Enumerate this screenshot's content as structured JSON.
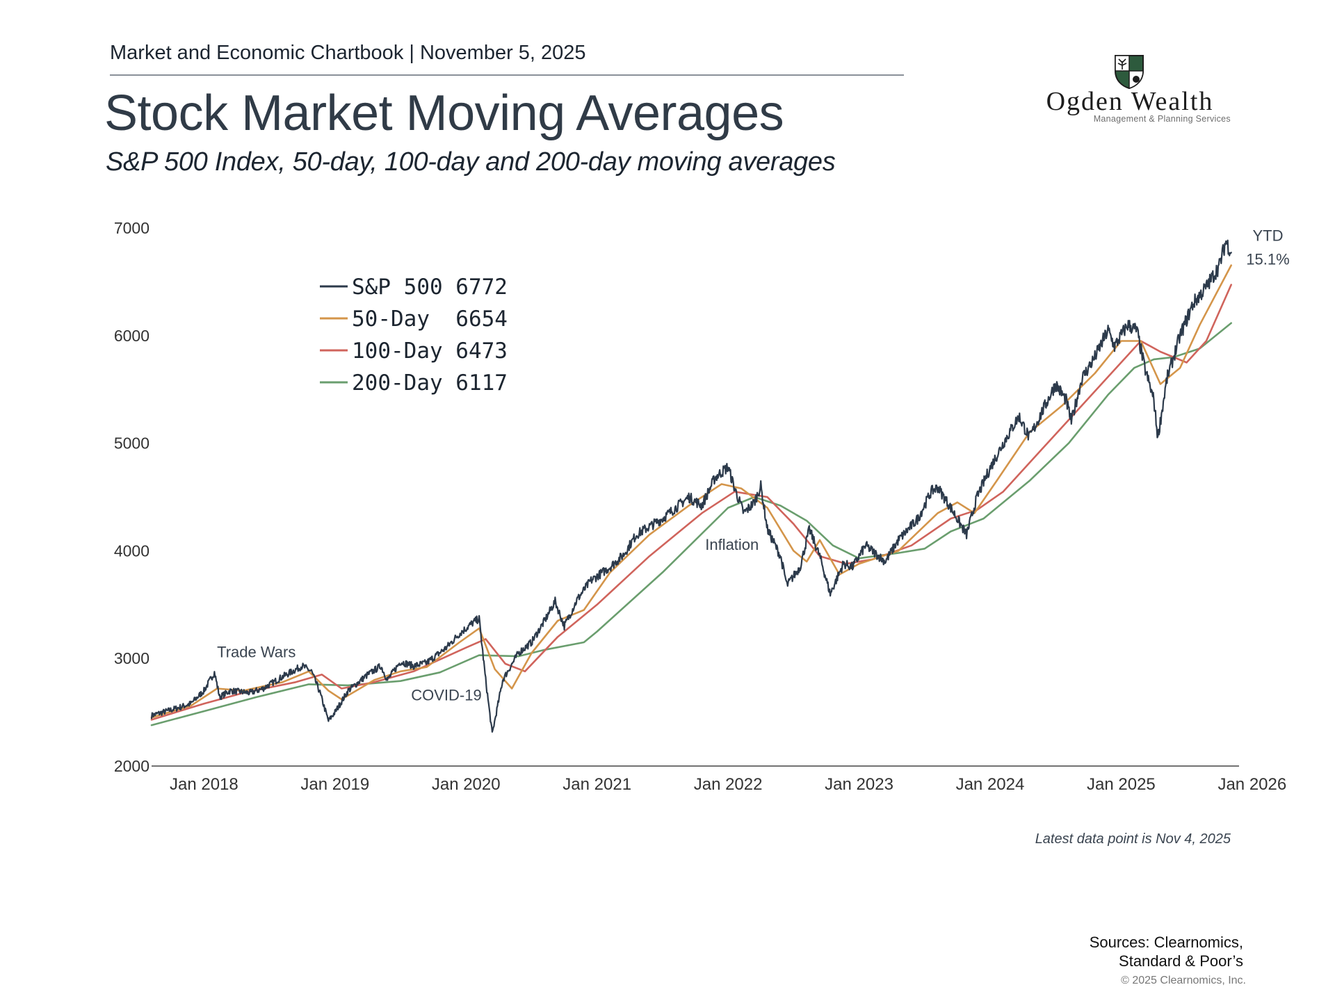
{
  "header": {
    "chartbook": "Market and Economic Chartbook | November 5, 2025",
    "title": "Stock Market Moving Averages",
    "subtitle": "S&P 500 Index, 50-day, 100-day and 200-day moving averages"
  },
  "logo": {
    "name": "Ogden Wealth",
    "tagline": "Management & Planning Services",
    "colors": {
      "green": "#2d5a3d",
      "dark": "#1d1d1d"
    }
  },
  "footer": {
    "latest_note": "Latest data point is Nov 4, 2025",
    "sources_line1": "Sources: Clearnomics,",
    "sources_line2": "Standard & Poor’s",
    "copyright": "© 2025 Clearnomics, Inc."
  },
  "chart_data": {
    "type": "line",
    "title": "Stock Market Moving Averages",
    "xlabel": "",
    "ylabel": "",
    "xlim": [
      2017.6,
      2025.9
    ],
    "ylim": [
      2000,
      7000
    ],
    "yticks": [
      2000,
      3000,
      4000,
      5000,
      6000,
      7000
    ],
    "xticks": [
      {
        "value": 2018.0,
        "label": "Jan 2018"
      },
      {
        "value": 2019.0,
        "label": "Jan 2019"
      },
      {
        "value": 2020.0,
        "label": "Jan 2020"
      },
      {
        "value": 2021.0,
        "label": "Jan 2021"
      },
      {
        "value": 2022.0,
        "label": "Jan 2022"
      },
      {
        "value": 2023.0,
        "label": "Jan 2023"
      },
      {
        "value": 2024.0,
        "label": "Jan 2024"
      },
      {
        "value": 2025.0,
        "label": "Jan 2025"
      },
      {
        "value": 2026.0,
        "label": "Jan 2026"
      }
    ],
    "grid": false,
    "legend": "top-left",
    "series": [
      {
        "name": "S&P 500",
        "label": "S&P 500 6772",
        "color": "#2c3a4b",
        "points": [
          [
            2017.6,
            2470
          ],
          [
            2017.8,
            2540
          ],
          [
            2017.9,
            2580
          ],
          [
            2018.0,
            2700
          ],
          [
            2018.08,
            2870
          ],
          [
            2018.12,
            2640
          ],
          [
            2018.2,
            2700
          ],
          [
            2018.35,
            2680
          ],
          [
            2018.45,
            2720
          ],
          [
            2018.6,
            2830
          ],
          [
            2018.75,
            2930
          ],
          [
            2018.82,
            2880
          ],
          [
            2018.88,
            2700
          ],
          [
            2018.95,
            2420
          ],
          [
            2019.0,
            2500
          ],
          [
            2019.1,
            2700
          ],
          [
            2019.25,
            2850
          ],
          [
            2019.35,
            2930
          ],
          [
            2019.4,
            2800
          ],
          [
            2019.5,
            2970
          ],
          [
            2019.6,
            2930
          ],
          [
            2019.7,
            2960
          ],
          [
            2019.85,
            3100
          ],
          [
            2019.95,
            3230
          ],
          [
            2020.05,
            3330
          ],
          [
            2020.1,
            3370
          ],
          [
            2020.15,
            2800
          ],
          [
            2020.2,
            2300
          ],
          [
            2020.28,
            2800
          ],
          [
            2020.4,
            3050
          ],
          [
            2020.5,
            3150
          ],
          [
            2020.6,
            3350
          ],
          [
            2020.68,
            3530
          ],
          [
            2020.75,
            3300
          ],
          [
            2020.85,
            3550
          ],
          [
            2020.95,
            3720
          ],
          [
            2021.1,
            3850
          ],
          [
            2021.2,
            3960
          ],
          [
            2021.3,
            4150
          ],
          [
            2021.5,
            4300
          ],
          [
            2021.6,
            4400
          ],
          [
            2021.7,
            4500
          ],
          [
            2021.8,
            4420
          ],
          [
            2021.9,
            4680
          ],
          [
            2022.0,
            4780
          ],
          [
            2022.05,
            4580
          ],
          [
            2022.12,
            4350
          ],
          [
            2022.2,
            4450
          ],
          [
            2022.25,
            4600
          ],
          [
            2022.3,
            4200
          ],
          [
            2022.4,
            3950
          ],
          [
            2022.45,
            3680
          ],
          [
            2022.55,
            3850
          ],
          [
            2022.62,
            4200
          ],
          [
            2022.7,
            3950
          ],
          [
            2022.78,
            3600
          ],
          [
            2022.88,
            3880
          ],
          [
            2022.95,
            3850
          ],
          [
            2023.05,
            4050
          ],
          [
            2023.15,
            3950
          ],
          [
            2023.2,
            3900
          ],
          [
            2023.3,
            4100
          ],
          [
            2023.45,
            4300
          ],
          [
            2023.55,
            4550
          ],
          [
            2023.6,
            4590
          ],
          [
            2023.7,
            4400
          ],
          [
            2023.82,
            4150
          ],
          [
            2023.9,
            4500
          ],
          [
            2024.0,
            4770
          ],
          [
            2024.1,
            5000
          ],
          [
            2024.22,
            5250
          ],
          [
            2024.3,
            5050
          ],
          [
            2024.4,
            5300
          ],
          [
            2024.5,
            5550
          ],
          [
            2024.58,
            5400
          ],
          [
            2024.62,
            5200
          ],
          [
            2024.7,
            5600
          ],
          [
            2024.8,
            5800
          ],
          [
            2024.9,
            6050
          ],
          [
            2024.95,
            5900
          ],
          [
            2025.05,
            6100
          ],
          [
            2025.12,
            6050
          ],
          [
            2025.18,
            5700
          ],
          [
            2025.25,
            5400
          ],
          [
            2025.28,
            5050
          ],
          [
            2025.35,
            5600
          ],
          [
            2025.45,
            6000
          ],
          [
            2025.55,
            6300
          ],
          [
            2025.65,
            6450
          ],
          [
            2025.75,
            6650
          ],
          [
            2025.8,
            6880
          ],
          [
            2025.84,
            6772
          ]
        ]
      },
      {
        "name": "50-Day",
        "label": "50-Day  6654",
        "color": "#d4954a",
        "points": [
          [
            2017.6,
            2450
          ],
          [
            2017.9,
            2560
          ],
          [
            2018.1,
            2720
          ],
          [
            2018.3,
            2700
          ],
          [
            2018.6,
            2780
          ],
          [
            2018.8,
            2880
          ],
          [
            2018.95,
            2700
          ],
          [
            2019.05,
            2620
          ],
          [
            2019.3,
            2800
          ],
          [
            2019.5,
            2880
          ],
          [
            2019.7,
            2920
          ],
          [
            2019.95,
            3150
          ],
          [
            2020.1,
            3280
          ],
          [
            2020.22,
            2900
          ],
          [
            2020.35,
            2720
          ],
          [
            2020.5,
            3050
          ],
          [
            2020.7,
            3350
          ],
          [
            2020.9,
            3450
          ],
          [
            2021.1,
            3800
          ],
          [
            2021.4,
            4150
          ],
          [
            2021.7,
            4420
          ],
          [
            2021.95,
            4620
          ],
          [
            2022.1,
            4580
          ],
          [
            2022.3,
            4400
          ],
          [
            2022.5,
            4000
          ],
          [
            2022.6,
            3900
          ],
          [
            2022.7,
            4100
          ],
          [
            2022.85,
            3780
          ],
          [
            2023.0,
            3880
          ],
          [
            2023.3,
            4000
          ],
          [
            2023.6,
            4350
          ],
          [
            2023.75,
            4450
          ],
          [
            2023.88,
            4350
          ],
          [
            2024.05,
            4650
          ],
          [
            2024.3,
            5100
          ],
          [
            2024.55,
            5350
          ],
          [
            2024.8,
            5650
          ],
          [
            2025.0,
            5950
          ],
          [
            2025.15,
            5950
          ],
          [
            2025.3,
            5550
          ],
          [
            2025.45,
            5700
          ],
          [
            2025.6,
            6100
          ],
          [
            2025.84,
            6654
          ]
        ]
      },
      {
        "name": "100-Day",
        "label": "100-Day 6473",
        "color": "#d0645c",
        "points": [
          [
            2017.6,
            2430
          ],
          [
            2018.0,
            2580
          ],
          [
            2018.3,
            2680
          ],
          [
            2018.7,
            2780
          ],
          [
            2018.9,
            2850
          ],
          [
            2019.05,
            2720
          ],
          [
            2019.3,
            2780
          ],
          [
            2019.6,
            2880
          ],
          [
            2020.0,
            3100
          ],
          [
            2020.15,
            3180
          ],
          [
            2020.3,
            2950
          ],
          [
            2020.45,
            2880
          ],
          [
            2020.7,
            3200
          ],
          [
            2021.0,
            3500
          ],
          [
            2021.4,
            3950
          ],
          [
            2021.8,
            4350
          ],
          [
            2022.05,
            4550
          ],
          [
            2022.3,
            4500
          ],
          [
            2022.5,
            4250
          ],
          [
            2022.7,
            3950
          ],
          [
            2022.9,
            3880
          ],
          [
            2023.1,
            3920
          ],
          [
            2023.4,
            4050
          ],
          [
            2023.7,
            4300
          ],
          [
            2023.9,
            4380
          ],
          [
            2024.1,
            4550
          ],
          [
            2024.4,
            4950
          ],
          [
            2024.7,
            5350
          ],
          [
            2025.0,
            5750
          ],
          [
            2025.15,
            5950
          ],
          [
            2025.3,
            5850
          ],
          [
            2025.5,
            5750
          ],
          [
            2025.65,
            5950
          ],
          [
            2025.84,
            6473
          ]
        ]
      },
      {
        "name": "200-Day",
        "label": "200-Day 6117",
        "color": "#6a9e6e",
        "points": [
          [
            2017.6,
            2380
          ],
          [
            2018.0,
            2510
          ],
          [
            2018.4,
            2640
          ],
          [
            2018.8,
            2760
          ],
          [
            2019.1,
            2750
          ],
          [
            2019.5,
            2790
          ],
          [
            2019.8,
            2870
          ],
          [
            2020.1,
            3030
          ],
          [
            2020.4,
            3020
          ],
          [
            2020.6,
            3080
          ],
          [
            2020.9,
            3150
          ],
          [
            2021.0,
            3250
          ],
          [
            2021.5,
            3800
          ],
          [
            2022.0,
            4400
          ],
          [
            2022.2,
            4500
          ],
          [
            2022.4,
            4420
          ],
          [
            2022.6,
            4280
          ],
          [
            2022.8,
            4050
          ],
          [
            2023.0,
            3930
          ],
          [
            2023.3,
            3980
          ],
          [
            2023.5,
            4020
          ],
          [
            2023.7,
            4180
          ],
          [
            2023.95,
            4300
          ],
          [
            2024.3,
            4650
          ],
          [
            2024.6,
            5000
          ],
          [
            2024.9,
            5450
          ],
          [
            2025.1,
            5700
          ],
          [
            2025.25,
            5780
          ],
          [
            2025.4,
            5800
          ],
          [
            2025.6,
            5880
          ],
          [
            2025.84,
            6117
          ]
        ]
      }
    ],
    "annotations": [
      {
        "text": "Trade Wars",
        "x": 2018.4,
        "y": 3010
      },
      {
        "text": "COVID-19",
        "x": 2019.85,
        "y": 2610
      },
      {
        "text": "Inflation",
        "x": 2022.03,
        "y": 4010
      },
      {
        "text": "YTD",
        "x": 2026.12,
        "y": 6880
      },
      {
        "text": "15.1%",
        "x": 2026.12,
        "y": 6660
      }
    ]
  }
}
